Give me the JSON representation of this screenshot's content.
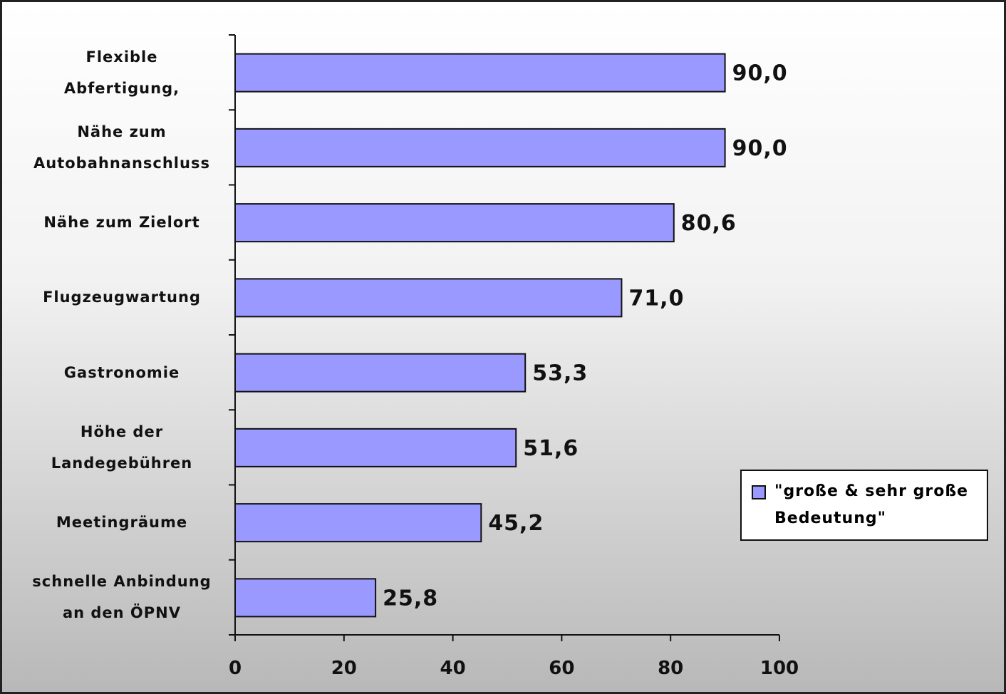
{
  "chart_data": {
    "type": "hbar",
    "categories": [
      "Flexible\nAbfertigung,",
      "Nähe zum\nAutobahnanschluss",
      "Nähe zum Zielort",
      "Flugzeugwartung",
      "Gastronomie",
      "Höhe der\nLandegebühren",
      "Meetingräume",
      "schnelle Anbindung\nan den ÖPNV"
    ],
    "series": [
      {
        "name": "\"große & sehr große Bedeutung\"",
        "color": "#9999ff",
        "values": [
          90.0,
          90.0,
          80.6,
          71.0,
          53.3,
          51.6,
          45.2,
          25.8
        ],
        "value_labels": [
          "90,0",
          "90,0",
          "80,6",
          "71,0",
          "53,3",
          "51,6",
          "45,2",
          "25,8"
        ]
      }
    ],
    "xlim": [
      0,
      100
    ],
    "xticks": [
      0,
      20,
      40,
      60,
      80,
      100
    ]
  }
}
